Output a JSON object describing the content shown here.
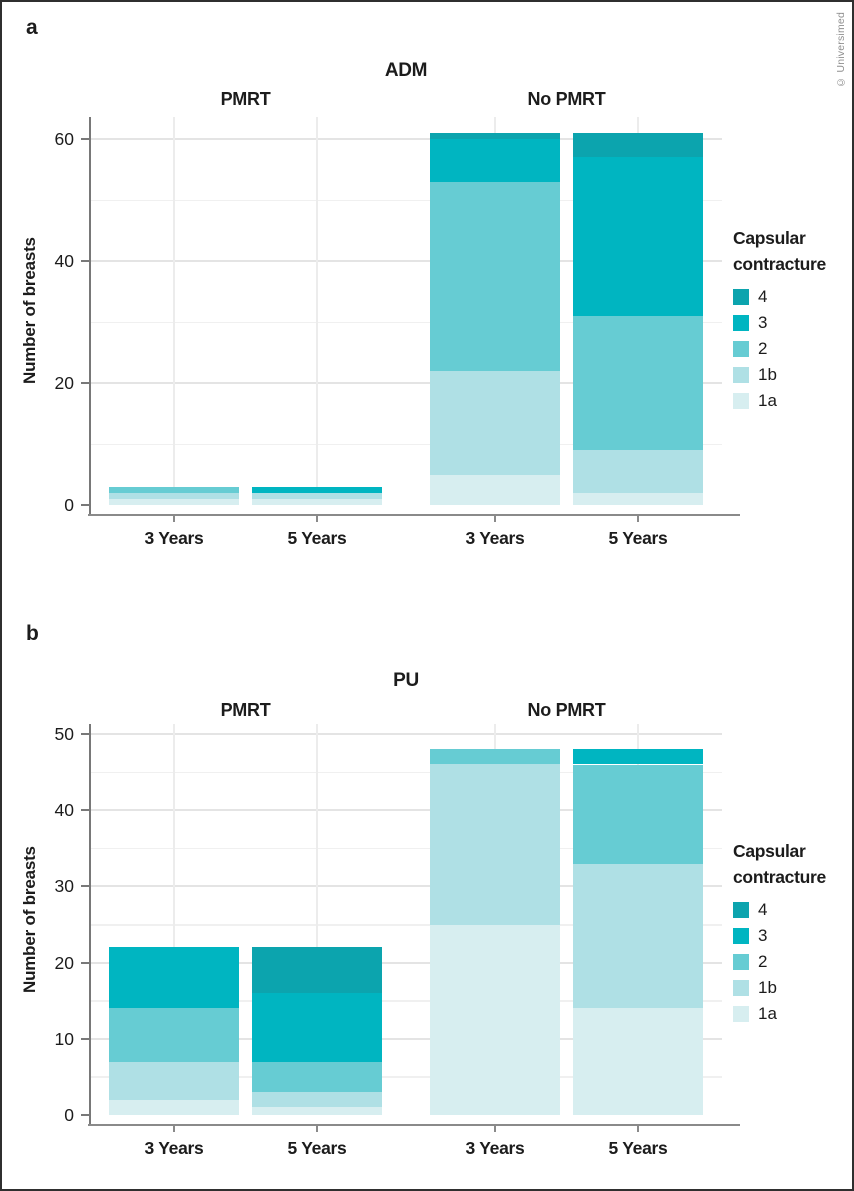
{
  "page": {
    "panel_letters": [
      "a",
      "b"
    ],
    "copyright": "© Universimed"
  },
  "legend": {
    "title_lines": [
      "Capsular",
      "contracture"
    ],
    "items": [
      {
        "label": "4",
        "color": "#0ca4ae"
      },
      {
        "label": "3",
        "color": "#00b5c1"
      },
      {
        "label": "2",
        "color": "#66ccd3"
      },
      {
        "label": "1b",
        "color": "#afe0e5"
      },
      {
        "label": "1a",
        "color": "#d7eef0"
      }
    ]
  },
  "colors": {
    "axis": "#787878",
    "grid_major": "#e4e4e4",
    "grid_minor": "#f0f0f0",
    "text": "#1c1c1c"
  },
  "chart_data": [
    {
      "type": "bar",
      "stacked": true,
      "title": "ADM",
      "ylabel": "Number of breasts",
      "ylim": [
        0,
        60
      ],
      "yticks": [
        0,
        20,
        40,
        60
      ],
      "yticks_minor": [
        10,
        30,
        50
      ],
      "grid": true,
      "legend_position": "right",
      "stack_order_bottom_to_top": [
        "1a",
        "1b",
        "2",
        "3",
        "4"
      ],
      "facets": [
        {
          "label": "PMRT",
          "bars": [
            {
              "category": "3 Years",
              "total": 3,
              "segments": {
                "1a": 1,
                "1b": 1,
                "2": 1
              }
            },
            {
              "category": "5 Years",
              "total": 3,
              "segments": {
                "1a": 1,
                "1b": 1,
                "3": 1
              }
            }
          ]
        },
        {
          "label": "No PMRT",
          "bars": [
            {
              "category": "3 Years",
              "total": 61,
              "segments": {
                "1a": 5,
                "1b": 17,
                "2": 31,
                "3": 7,
                "4": 1
              }
            },
            {
              "category": "5 Years",
              "total": 61,
              "segments": {
                "1a": 2,
                "1b": 7,
                "2": 22,
                "3": 26,
                "4": 4
              }
            }
          ]
        }
      ]
    },
    {
      "type": "bar",
      "stacked": true,
      "title": "PU",
      "ylabel": "Number of breasts",
      "ylim": [
        0,
        50
      ],
      "yticks": [
        0,
        10,
        20,
        30,
        40,
        50
      ],
      "yticks_minor": [
        5,
        15,
        25,
        35,
        45
      ],
      "grid": true,
      "legend_position": "right",
      "stack_order_bottom_to_top": [
        "1a",
        "1b",
        "2",
        "3",
        "4"
      ],
      "facets": [
        {
          "label": "PMRT",
          "bars": [
            {
              "category": "3 Years",
              "total": 22,
              "segments": {
                "1a": 2,
                "1b": 5,
                "2": 7,
                "3": 8
              }
            },
            {
              "category": "5 Years",
              "total": 22,
              "segments": {
                "1a": 1,
                "1b": 2,
                "2": 4,
                "3": 9,
                "4": 6
              }
            }
          ]
        },
        {
          "label": "No PMRT",
          "bars": [
            {
              "category": "3 Years",
              "total": 48,
              "segments": {
                "1a": 25,
                "1b": 21,
                "2": 2
              }
            },
            {
              "category": "5 Years",
              "total": 48,
              "segments": {
                "1a": 14,
                "1b": 19,
                "2": 13,
                "3": 2
              }
            }
          ]
        }
      ]
    }
  ]
}
